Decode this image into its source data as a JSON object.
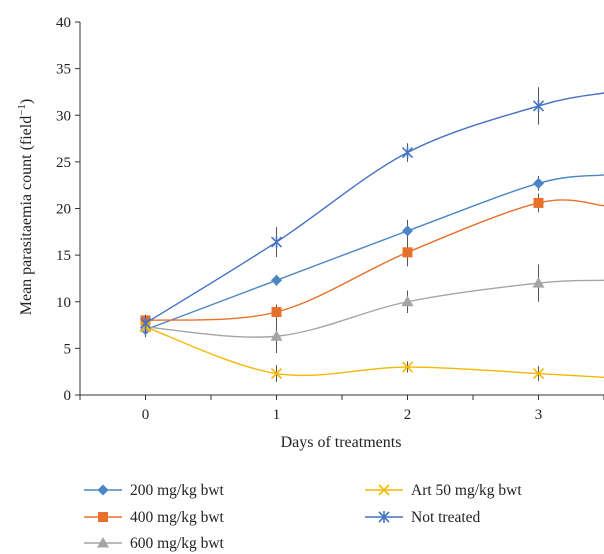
{
  "chart_data": {
    "type": "line",
    "title": "",
    "xlabel": "Days of treatments",
    "ylabel": "Mean parasitaemia count (field",
    "ylabel_sup": "−1",
    "ylabel_close": ")",
    "xlim": [
      -0.5,
      3.5
    ],
    "ylim": [
      0,
      40
    ],
    "x_ticks": [
      0,
      1,
      2,
      3
    ],
    "x_tick_labels": [
      "0",
      "1",
      "2",
      "3"
    ],
    "y_ticks": [
      0,
      5,
      10,
      15,
      20,
      25,
      30,
      35,
      40
    ],
    "y_tick_labels": [
      "0",
      "5",
      "10",
      "15",
      "20",
      "25",
      "30",
      "35",
      "40"
    ],
    "grid": false,
    "legend_position": "bottom",
    "smooth": true,
    "series": [
      {
        "name": "200 mg/kg bwt",
        "color": "#4a86c5",
        "marker": "diamond",
        "x": [
          0,
          1,
          2,
          3
        ],
        "values": [
          7.0,
          12.3,
          17.6,
          22.7
        ],
        "error": [
          0.8,
          0.6,
          1.2,
          0.8
        ],
        "tail": 23.6
      },
      {
        "name": "400 mg/kg bwt",
        "color": "#e8702a",
        "marker": "square",
        "x": [
          0,
          1,
          2,
          3
        ],
        "values": [
          8.0,
          8.9,
          15.3,
          20.6
        ],
        "error": [
          0.5,
          0.8,
          1.5,
          1.0
        ],
        "tail": 20.3
      },
      {
        "name": "600 mg/kg bwt",
        "color": "#a5a5a5",
        "marker": "triangle",
        "x": [
          0,
          1,
          2,
          3
        ],
        "values": [
          7.3,
          6.3,
          10.0,
          12.0
        ],
        "error": [
          0.6,
          1.8,
          1.2,
          2.0
        ],
        "tail": 12.3
      },
      {
        "name": "Art 50 mg/kg bwt",
        "color": "#f5b800",
        "marker": "x",
        "x": [
          0,
          1,
          2,
          3
        ],
        "values": [
          7.3,
          2.3,
          3.0,
          2.3
        ],
        "error": [
          0.6,
          0.9,
          0.6,
          0.8
        ],
        "tail": 1.9
      },
      {
        "name": "Not treated",
        "color": "#4472c4",
        "marker": "star",
        "x": [
          0,
          1,
          2,
          3
        ],
        "values": [
          7.7,
          16.4,
          26.0,
          31.0
        ],
        "error": [
          0.9,
          1.6,
          1.0,
          2.0
        ],
        "tail": 32.4
      }
    ]
  }
}
